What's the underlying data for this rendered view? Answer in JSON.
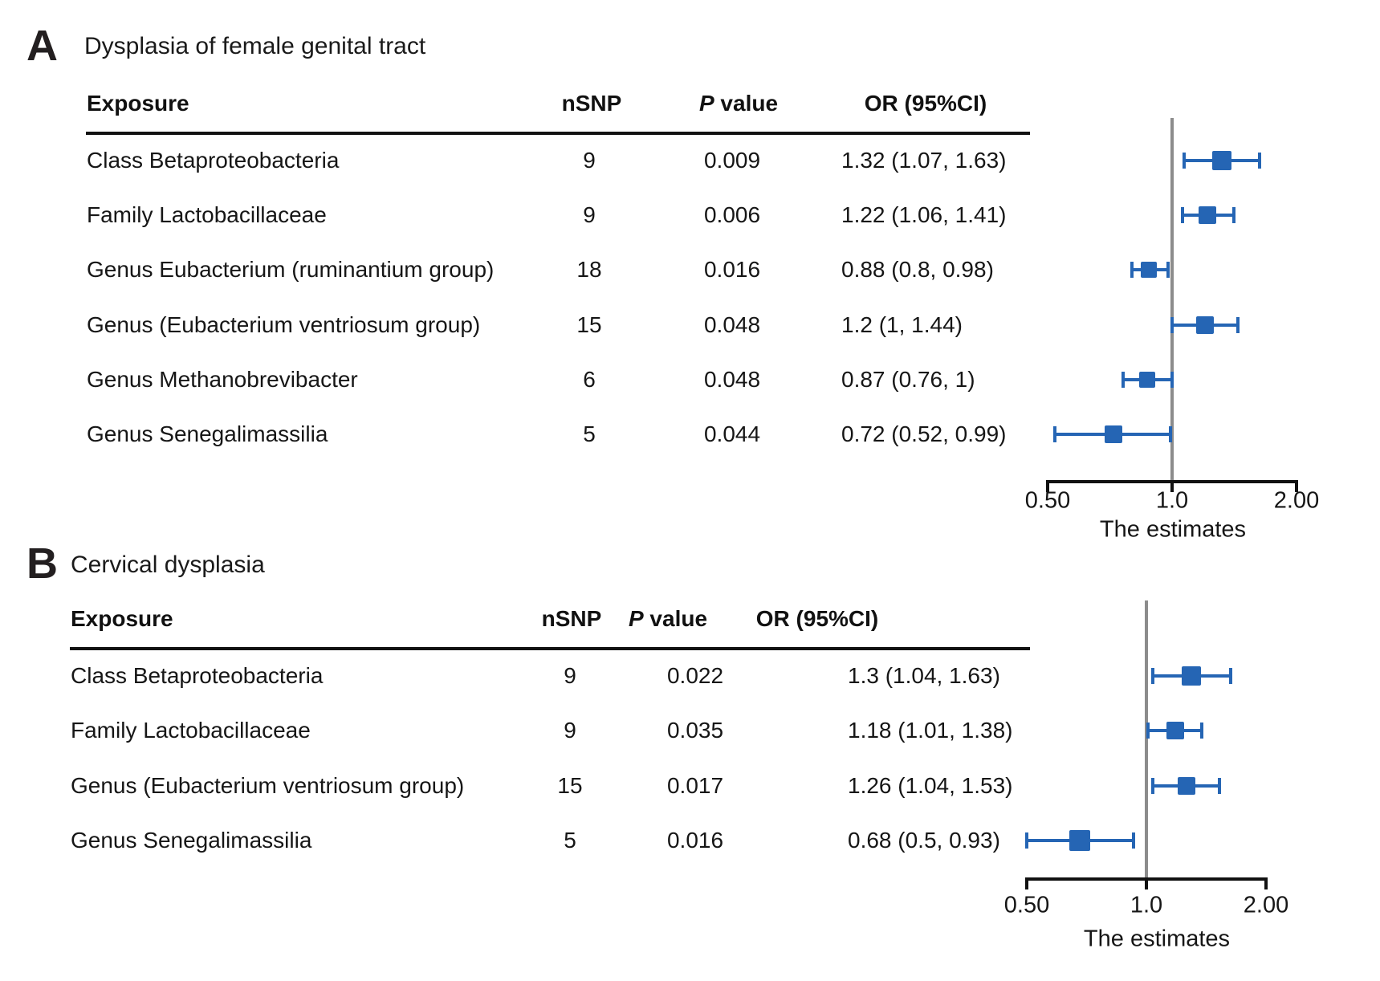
{
  "figure_colors": {
    "marker_blue": "#2565b4",
    "reference_line_gray": "#8c8c8c",
    "axis_black": "#111111"
  },
  "chart_data": [
    {
      "type": "forest",
      "panel_label": "A",
      "title": "Dysplasia of female genital tract",
      "columns": {
        "exposure": "Exposure",
        "nsnp": "nSNP",
        "pvalue": {
          "italic": "P",
          "rest": " value"
        },
        "or": "OR (95%CI)"
      },
      "xlabel": "The estimates",
      "xscale": "log",
      "xlim": [
        0.5,
        2.0
      ],
      "reference_value": 1.0,
      "xticks": [
        {
          "label": "0.50",
          "value": 0.5
        },
        {
          "label": "1.0",
          "value": 1.0
        },
        {
          "label": "2.00",
          "value": 2.0
        }
      ],
      "rows": [
        {
          "exposure": "Class Betaproteobacteria",
          "nsnp": "9",
          "pvalue": "0.009",
          "or_text": "1.32 (1.07, 1.63)",
          "or": 1.32,
          "ci_low": 1.07,
          "ci_high": 1.63,
          "marker_size": 24
        },
        {
          "exposure": "Family Lactobacillaceae",
          "nsnp": "9",
          "pvalue": "0.006",
          "or_text": "1.22 (1.06, 1.41)",
          "or": 1.22,
          "ci_low": 1.06,
          "ci_high": 1.41,
          "marker_size": 22
        },
        {
          "exposure": "Genus Eubacterium (ruminantium group)",
          "nsnp": "18",
          "pvalue": "0.016",
          "or_text": "0.88 (0.8, 0.98)",
          "or": 0.88,
          "ci_low": 0.8,
          "ci_high": 0.98,
          "marker_size": 20
        },
        {
          "exposure": "Genus (Eubacterium ventriosum group)",
          "nsnp": "15",
          "pvalue": "0.048",
          "or_text": "1.2 (1, 1.44)",
          "or": 1.2,
          "ci_low": 1.0,
          "ci_high": 1.44,
          "marker_size": 22
        },
        {
          "exposure": "Genus Methanobrevibacter",
          "nsnp": "6",
          "pvalue": "0.048",
          "or_text": "0.87 (0.76, 1)",
          "or": 0.87,
          "ci_low": 0.76,
          "ci_high": 1.0,
          "marker_size": 20
        },
        {
          "exposure": "Genus Senegalimassilia",
          "nsnp": "5",
          "pvalue": "0.044",
          "or_text": "0.72 (0.52, 0.99)",
          "or": 0.72,
          "ci_low": 0.52,
          "ci_high": 0.99,
          "marker_size": 22
        }
      ]
    },
    {
      "type": "forest",
      "panel_label": "B",
      "title": "Cervical dysplasia",
      "columns": {
        "exposure": "Exposure",
        "nsnp": "nSNP",
        "pvalue": {
          "italic": "P",
          "rest": " value"
        },
        "or": "OR (95%CI)"
      },
      "xlabel": "The estimates",
      "xscale": "log",
      "xlim": [
        0.5,
        2.0
      ],
      "reference_value": 1.0,
      "xticks": [
        {
          "label": "0.50",
          "value": 0.5
        },
        {
          "label": "1.0",
          "value": 1.0
        },
        {
          "label": "2.00",
          "value": 2.0
        }
      ],
      "rows": [
        {
          "exposure": "Class Betaproteobacteria",
          "nsnp": "9",
          "pvalue": "0.022",
          "or_text": "1.3 (1.04, 1.63)",
          "or": 1.3,
          "ci_low": 1.04,
          "ci_high": 1.63,
          "marker_size": 24
        },
        {
          "exposure": "Family Lactobacillaceae",
          "nsnp": "9",
          "pvalue": "0.035",
          "or_text": "1.18 (1.01, 1.38)",
          "or": 1.18,
          "ci_low": 1.01,
          "ci_high": 1.38,
          "marker_size": 22
        },
        {
          "exposure": "Genus (Eubacterium ventriosum group)",
          "nsnp": "15",
          "pvalue": "0.017",
          "or_text": "1.26 (1.04, 1.53)",
          "or": 1.26,
          "ci_low": 1.04,
          "ci_high": 1.53,
          "marker_size": 22
        },
        {
          "exposure": "Genus Senegalimassilia",
          "nsnp": "5",
          "pvalue": "0.016",
          "or_text": "0.68 (0.5, 0.93)",
          "or": 0.68,
          "ci_low": 0.5,
          "ci_high": 0.93,
          "marker_size": 26
        }
      ]
    }
  ]
}
